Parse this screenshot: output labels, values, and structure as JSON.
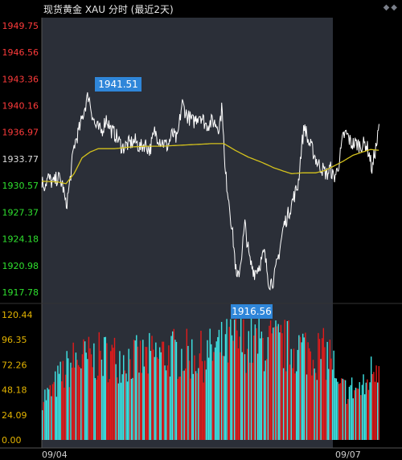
{
  "header": {
    "title": "现货黄金 XAU 分时 (最近2天)",
    "icons": [
      "diamond-icon",
      "diamond-icon"
    ]
  },
  "colors": {
    "background": "#000000",
    "plot_highlight": "#2b2f38",
    "price_line": "#ffffff",
    "avg_line": "#d4c21c",
    "price_axis_up": "#ff3b3b",
    "price_axis_down": "#2fe12f",
    "volume_axis": "#e4b400",
    "volume_up": "#e31b1b",
    "volume_down": "#3ee6e6",
    "label_bg": "#2f86d9"
  },
  "chart_data": [
    {
      "type": "line",
      "title": "现货黄金 XAU 分时 (最近2天)",
      "y_ticks": [
        "1949.75",
        "1946.56",
        "1943.36",
        "1940.16",
        "1936.97",
        "1933.77",
        "1930.57",
        "1927.37",
        "1924.18",
        "1920.98",
        "1917.78"
      ],
      "ylim": [
        1917.78,
        1949.75
      ],
      "reference_price": "1933.77",
      "x_ticks": [
        "09/04",
        "09/07"
      ],
      "high_label": "1941.51",
      "low_label": "1916.56",
      "series": [
        {
          "role": "price",
          "color": "#ffffff",
          "anchors": [
            [
              0,
              1931.1
            ],
            [
              3,
              1930.6
            ],
            [
              8,
              1931.5
            ],
            [
              14,
              1930.8
            ],
            [
              20,
              1931.6
            ],
            [
              26,
              1930.6
            ],
            [
              30,
              1928.0
            ],
            [
              34,
              1930.4
            ],
            [
              40,
              1935.3
            ],
            [
              48,
              1937.8
            ],
            [
              54,
              1940.2
            ],
            [
              58,
              1941.5
            ],
            [
              62,
              1939.4
            ],
            [
              66,
              1937.8
            ],
            [
              74,
              1937.0
            ],
            [
              80,
              1938.7
            ],
            [
              86,
              1937.2
            ],
            [
              92,
              1936.6
            ],
            [
              100,
              1935.1
            ],
            [
              108,
              1935.6
            ],
            [
              116,
              1935.9
            ],
            [
              122,
              1935.1
            ],
            [
              128,
              1935.6
            ],
            [
              134,
              1934.8
            ],
            [
              140,
              1937.0
            ],
            [
              148,
              1935.9
            ],
            [
              156,
              1935.3
            ],
            [
              162,
              1936.8
            ],
            [
              168,
              1936.0
            ],
            [
              174,
              1940.5
            ],
            [
              180,
              1939.0
            ],
            [
              188,
              1938.2
            ],
            [
              196,
              1939.2
            ],
            [
              204,
              1937.8
            ],
            [
              212,
              1938.3
            ],
            [
              220,
              1937.6
            ],
            [
              224,
              1940.2
            ],
            [
              227,
              1932.6
            ],
            [
              232,
              1929.0
            ],
            [
              238,
              1923.5
            ],
            [
              242,
              1919.0
            ],
            [
              246,
              1920.8
            ],
            [
              252,
              1925.9
            ],
            [
              258,
              1921.5
            ],
            [
              264,
              1920.2
            ],
            [
              270,
              1921.0
            ],
            [
              276,
              1922.5
            ],
            [
              282,
              1918.9
            ],
            [
              288,
              1919.3
            ],
            [
              294,
              1922.3
            ],
            [
              300,
              1925.7
            ],
            [
              306,
              1927.2
            ],
            [
              312,
              1929.0
            ],
            [
              318,
              1930.7
            ],
            [
              322,
              1935.0
            ],
            [
              326,
              1937.9
            ],
            [
              330,
              1936.0
            ],
            [
              336,
              1934.8
            ],
            [
              342,
              1933.3
            ],
            [
              348,
              1932.6
            ],
            [
              354,
              1931.9
            ],
            [
              358,
              1932.7
            ],
            [
              362,
              1931.5
            ],
            [
              366,
              1932.2
            ],
            [
              370,
              1934.0
            ],
            [
              374,
              1936.5
            ],
            [
              378,
              1936.8
            ],
            [
              384,
              1935.6
            ],
            [
              390,
              1935.6
            ],
            [
              396,
              1935.4
            ],
            [
              402,
              1935.6
            ],
            [
              406,
              1934.5
            ],
            [
              410,
              1932.3
            ],
            [
              412,
              1934.0
            ],
            [
              416,
              1935.8
            ],
            [
              419,
              1938.0
            ]
          ]
        },
        {
          "role": "average",
          "color": "#d4c21c",
          "anchors": [
            [
              0,
              1931.1
            ],
            [
              20,
              1931.0
            ],
            [
              30,
              1930.8
            ],
            [
              40,
              1932.0
            ],
            [
              50,
              1933.9
            ],
            [
              60,
              1934.6
            ],
            [
              70,
              1935.0
            ],
            [
              90,
              1935.0
            ],
            [
              110,
              1935.2
            ],
            [
              130,
              1935.3
            ],
            [
              150,
              1935.3
            ],
            [
              170,
              1935.4
            ],
            [
              190,
              1935.5
            ],
            [
              210,
              1935.6
            ],
            [
              226,
              1935.6
            ],
            [
              240,
              1934.8
            ],
            [
              256,
              1934.0
            ],
            [
              272,
              1933.4
            ],
            [
              288,
              1932.7
            ],
            [
              300,
              1932.3
            ],
            [
              310,
              1932.0
            ],
            [
              324,
              1932.1
            ],
            [
              340,
              1932.1
            ],
            [
              352,
              1932.4
            ],
            [
              362,
              1932.9
            ],
            [
              374,
              1933.5
            ],
            [
              386,
              1934.2
            ],
            [
              398,
              1934.6
            ],
            [
              408,
              1934.9
            ],
            [
              419,
              1934.8
            ]
          ]
        }
      ]
    },
    {
      "type": "bar",
      "title": "",
      "y_ticks": [
        "120.44",
        "96.35",
        "72.26",
        "48.18",
        "24.09",
        "0.00"
      ],
      "ylim": [
        0,
        120.44
      ],
      "series": [
        {
          "role": "volume",
          "up_color": "#e31b1b",
          "down_color": "#3ee6e6",
          "profile": [
            [
              0,
              52
            ],
            [
              10,
              55
            ],
            [
              20,
              72
            ],
            [
              40,
              95
            ],
            [
              80,
              100
            ],
            [
              120,
              96
            ],
            [
              160,
              104
            ],
            [
              200,
              100
            ],
            [
              226,
              112
            ],
            [
              240,
              118
            ],
            [
              280,
              115
            ],
            [
              320,
              110
            ],
            [
              360,
              100
            ],
            [
              365,
              60
            ],
            [
              400,
              62
            ],
            [
              410,
              86
            ],
            [
              419,
              96
            ]
          ]
        }
      ]
    }
  ]
}
